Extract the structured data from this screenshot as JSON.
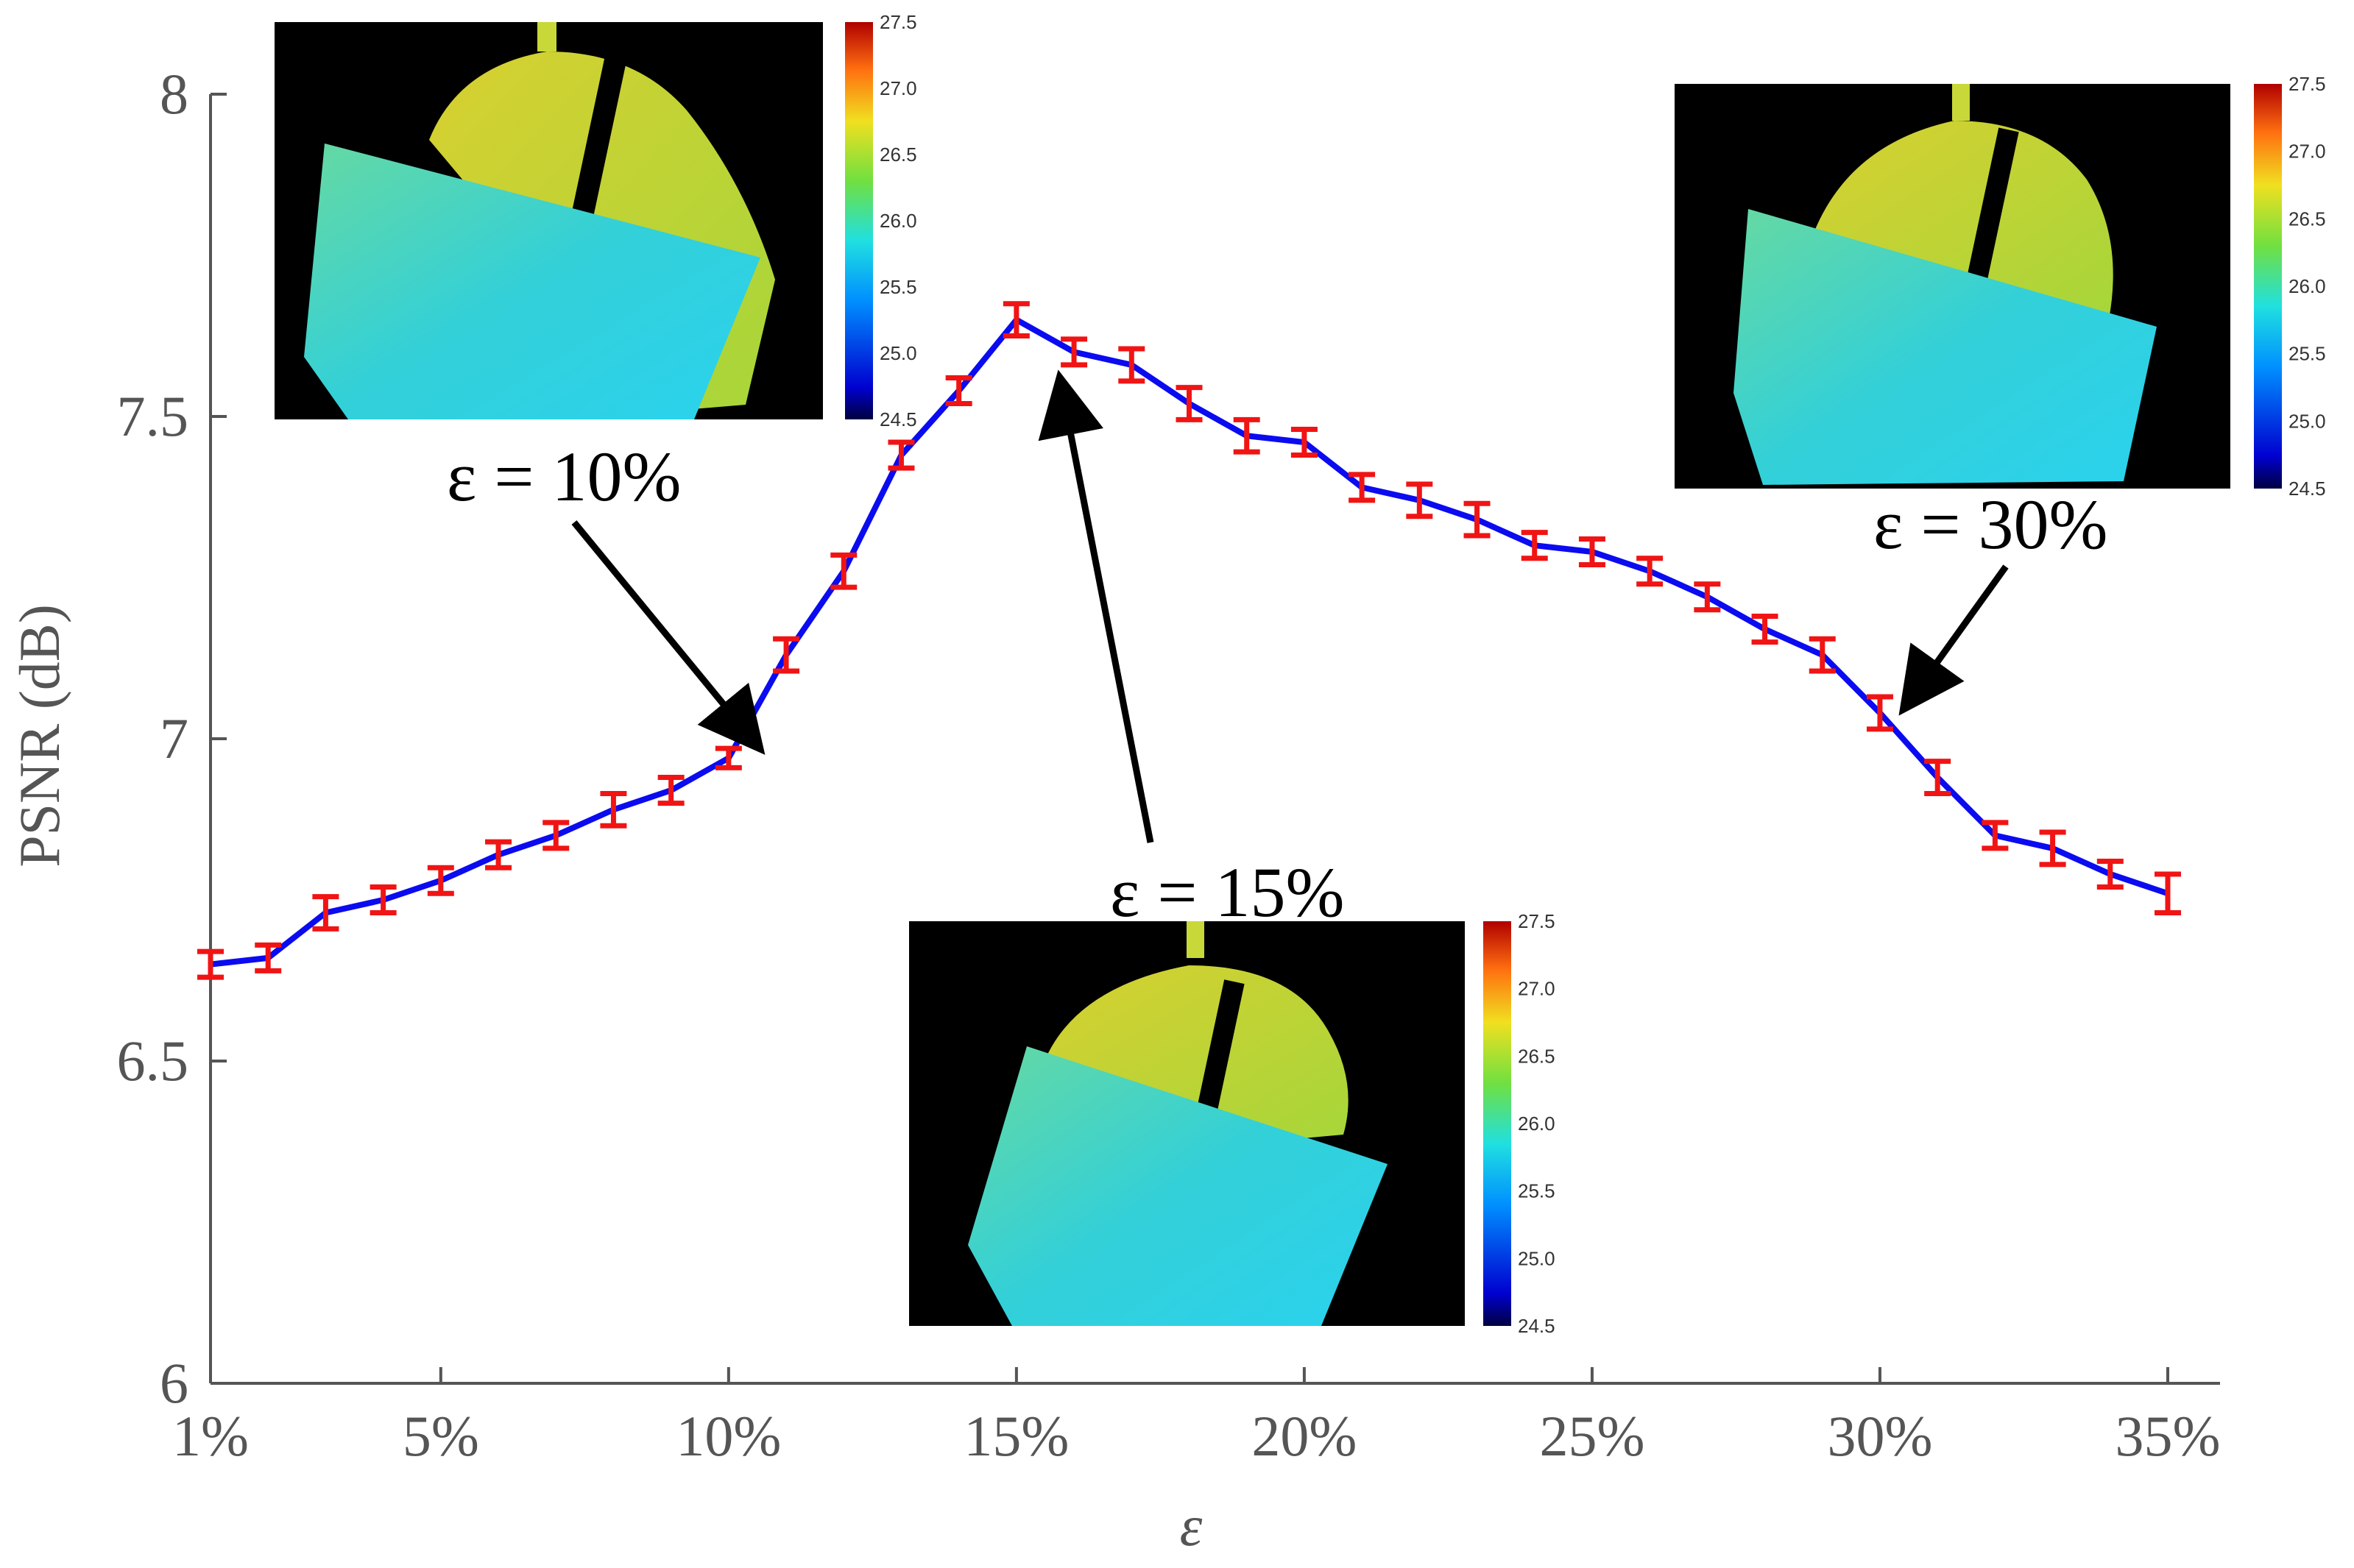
{
  "colors": {
    "line": "#0b0bf0",
    "error_bar": "#f01414",
    "axis": "#555555",
    "arrow": "#000000",
    "inset_background": "#000000"
  },
  "chart_data": {
    "type": "line",
    "title": "",
    "xlabel": "ε",
    "ylabel": "PSNR (dB)",
    "ylim": [
      6,
      8
    ],
    "xlim": [
      1,
      35
    ],
    "x": [
      1,
      2,
      3,
      4,
      5,
      6,
      7,
      8,
      9,
      10,
      11,
      12,
      13,
      14,
      15,
      16,
      17,
      18,
      19,
      20,
      21,
      22,
      23,
      24,
      25,
      26,
      27,
      28,
      29,
      30,
      31,
      32,
      33,
      34,
      35
    ],
    "x_ticks": [
      1,
      5,
      10,
      15,
      20,
      25,
      30,
      35
    ],
    "x_tick_labels": [
      "1%",
      "5%",
      "10%",
      "15%",
      "20%",
      "25%",
      "30%",
      "35%"
    ],
    "y_ticks": [
      6,
      6.5,
      7,
      7.5,
      8
    ],
    "y_tick_labels": [
      "6",
      "6.5",
      "7",
      "7.5",
      "8"
    ],
    "series": [
      {
        "name": "PSNR",
        "values": [
          6.65,
          6.66,
          6.73,
          6.75,
          6.78,
          6.82,
          6.85,
          6.89,
          6.92,
          6.97,
          7.13,
          7.26,
          7.44,
          7.54,
          7.65,
          7.6,
          7.58,
          7.52,
          7.47,
          7.46,
          7.39,
          7.37,
          7.34,
          7.3,
          7.29,
          7.26,
          7.22,
          7.17,
          7.13,
          7.04,
          6.94,
          6.85,
          6.83,
          6.79,
          6.76
        ],
        "errors": [
          0.02,
          0.02,
          0.025,
          0.02,
          0.02,
          0.02,
          0.02,
          0.025,
          0.02,
          0.015,
          0.025,
          0.025,
          0.02,
          0.02,
          0.025,
          0.02,
          0.025,
          0.025,
          0.025,
          0.02,
          0.02,
          0.025,
          0.025,
          0.02,
          0.02,
          0.02,
          0.02,
          0.02,
          0.025,
          0.025,
          0.025,
          0.02,
          0.025,
          0.02,
          0.03
        ]
      }
    ],
    "annotations": [
      {
        "text": "ε = 10%",
        "points_to_x": 10,
        "points_to_y": 6.97
      },
      {
        "text": "ε = 15%",
        "points_to_x": 15,
        "points_to_y": 7.65
      },
      {
        "text": "ε = 30%",
        "points_to_x": 30,
        "points_to_y": 7.04
      }
    ],
    "insets": [
      {
        "label": "ε = 10%",
        "colorbar_ticks": [
          "27.5",
          "27.0",
          "26.5",
          "26.0",
          "25.5",
          "25.0",
          "24.5"
        ]
      },
      {
        "label": "ε = 15%",
        "colorbar_ticks": [
          "27.5",
          "27.0",
          "26.5",
          "26.0",
          "25.5",
          "25.0",
          "24.5"
        ]
      },
      {
        "label": "ε = 30%",
        "colorbar_ticks": [
          "27.5",
          "27.0",
          "26.5",
          "26.0",
          "25.5",
          "25.0",
          "24.5"
        ]
      }
    ]
  }
}
